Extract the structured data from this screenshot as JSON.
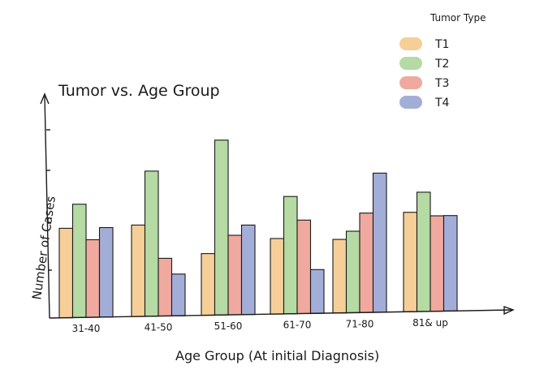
{
  "chart_data": {
    "type": "bar",
    "title": "Tumor vs. Age Group",
    "xlabel": "Age Group (At initial Diagnosis)",
    "ylabel": "Number of Cases",
    "categories": [
      "31-40",
      "41-50",
      "51-60",
      "61-70",
      "71-80",
      "81& up"
    ],
    "ylim": [
      0,
      100
    ],
    "grid": false,
    "legend": {
      "title": "Tumor Type",
      "position": "top-right"
    },
    "series": [
      {
        "name": "T1",
        "color": "#F6CF98",
        "values": [
          45,
          46,
          31,
          38,
          37,
          50
        ]
      },
      {
        "name": "T2",
        "color": "#B5DAA4",
        "values": [
          57,
          73,
          88,
          59,
          41,
          60
        ]
      },
      {
        "name": "T3",
        "color": "#F0A99E",
        "values": [
          39,
          29,
          40,
          47,
          50,
          48
        ]
      },
      {
        "name": "T4",
        "color": "#A3AED8",
        "values": [
          45,
          21,
          45,
          22,
          70,
          48
        ]
      }
    ]
  }
}
